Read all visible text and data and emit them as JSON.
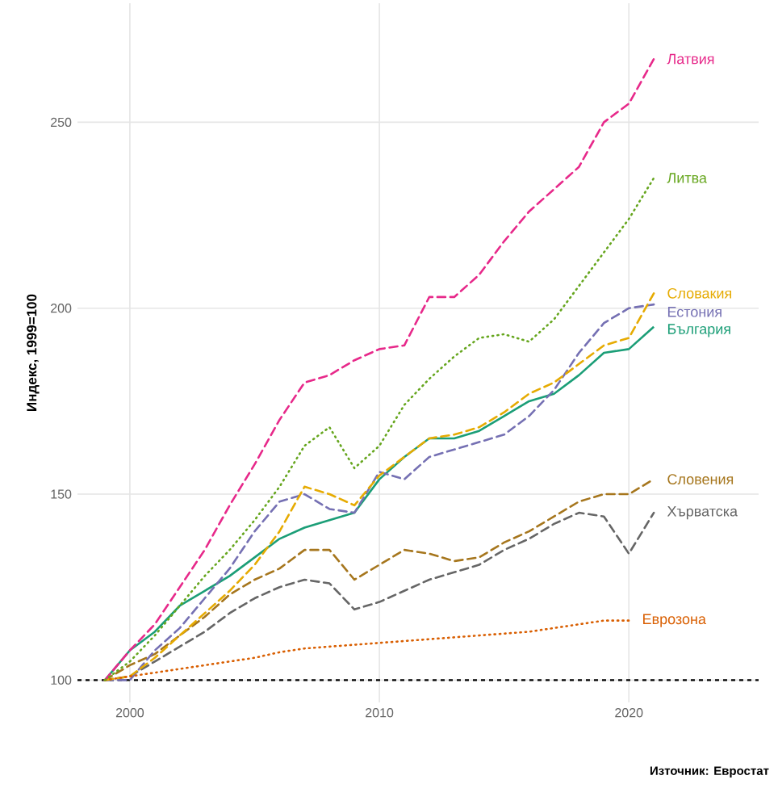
{
  "chart_data": {
    "type": "line",
    "ylabel": "Индекс, 1999=100",
    "x": [
      1999,
      2000,
      2001,
      2002,
      2003,
      2004,
      2005,
      2006,
      2007,
      2008,
      2009,
      2010,
      2011,
      2012,
      2013,
      2014,
      2015,
      2016,
      2017,
      2018,
      2019,
      2020,
      2021
    ],
    "series": [
      {
        "name": "Латвия",
        "color": "#e7298a",
        "line_style": "dashed",
        "values": [
          100,
          108,
          115,
          125,
          135,
          147,
          158,
          170,
          180,
          182,
          186,
          189,
          190,
          203,
          203,
          209,
          218,
          226,
          232,
          238,
          250,
          255,
          267
        ]
      },
      {
        "name": "Литва",
        "color": "#66a61e",
        "line_style": "dotted",
        "values": [
          100,
          105,
          112,
          120,
          128,
          135,
          143,
          152,
          163,
          168,
          157,
          163,
          174,
          181,
          187,
          192,
          193,
          191,
          197,
          206,
          215,
          224,
          235
        ]
      },
      {
        "name": "Словакия",
        "color": "#e6ab02",
        "line_style": "dashed",
        "values": [
          100,
          101,
          106,
          112,
          118,
          124,
          131,
          140,
          152,
          150,
          147,
          155,
          160,
          165,
          166,
          168,
          172,
          177,
          180,
          185,
          190,
          192,
          204
        ]
      },
      {
        "name": "Естония",
        "color": "#7570b3",
        "line_style": "dashed",
        "values": [
          100,
          100,
          108,
          114,
          122,
          130,
          140,
          148,
          150,
          146,
          145,
          156,
          154,
          160,
          162,
          164,
          166,
          171,
          178,
          188,
          196,
          200,
          201
        ]
      },
      {
        "name": "България",
        "color": "#1b9e77",
        "line_style": "solid",
        "values": [
          100,
          108,
          113,
          120,
          124,
          128,
          133,
          138,
          141,
          143,
          145,
          154,
          160,
          165,
          165,
          167,
          171,
          175,
          177,
          182,
          188,
          189,
          195
        ]
      },
      {
        "name": "Словения",
        "color": "#a6761d",
        "line_style": "dashed",
        "values": [
          100,
          104,
          107,
          112,
          117,
          123,
          127,
          130,
          135,
          135,
          127,
          131,
          135,
          134,
          132,
          133,
          137,
          140,
          144,
          148,
          150,
          150,
          154
        ]
      },
      {
        "name": "Хърватска",
        "color": "#666666",
        "line_style": "dashed",
        "values": [
          100,
          101,
          105,
          109,
          113,
          118,
          122,
          125,
          127,
          126,
          119,
          121,
          124,
          127,
          129,
          131,
          135,
          138,
          142,
          145,
          144,
          134,
          145
        ]
      },
      {
        "name": "Еврозона",
        "color": "#d95f02",
        "line_style": "dotted",
        "values": [
          100,
          101,
          102,
          103,
          104,
          105,
          106,
          107.5,
          108.5,
          109,
          109.5,
          110,
          110.5,
          111,
          111.5,
          112,
          112.5,
          113,
          114,
          115,
          116,
          116,
          null
        ]
      }
    ],
    "xlim": [
      1997.9,
      2025.2
    ],
    "ylim": [
      94,
      282
    ],
    "xticks": [
      2000,
      2010,
      2020
    ],
    "yticks": [
      100,
      150,
      200,
      250
    ],
    "grid": true,
    "ref_lines": [
      {
        "axis": "y",
        "value": 100,
        "color": "#000000",
        "line_style": "dashed"
      }
    ],
    "annotations": [
      "Източник: Евростат"
    ]
  }
}
